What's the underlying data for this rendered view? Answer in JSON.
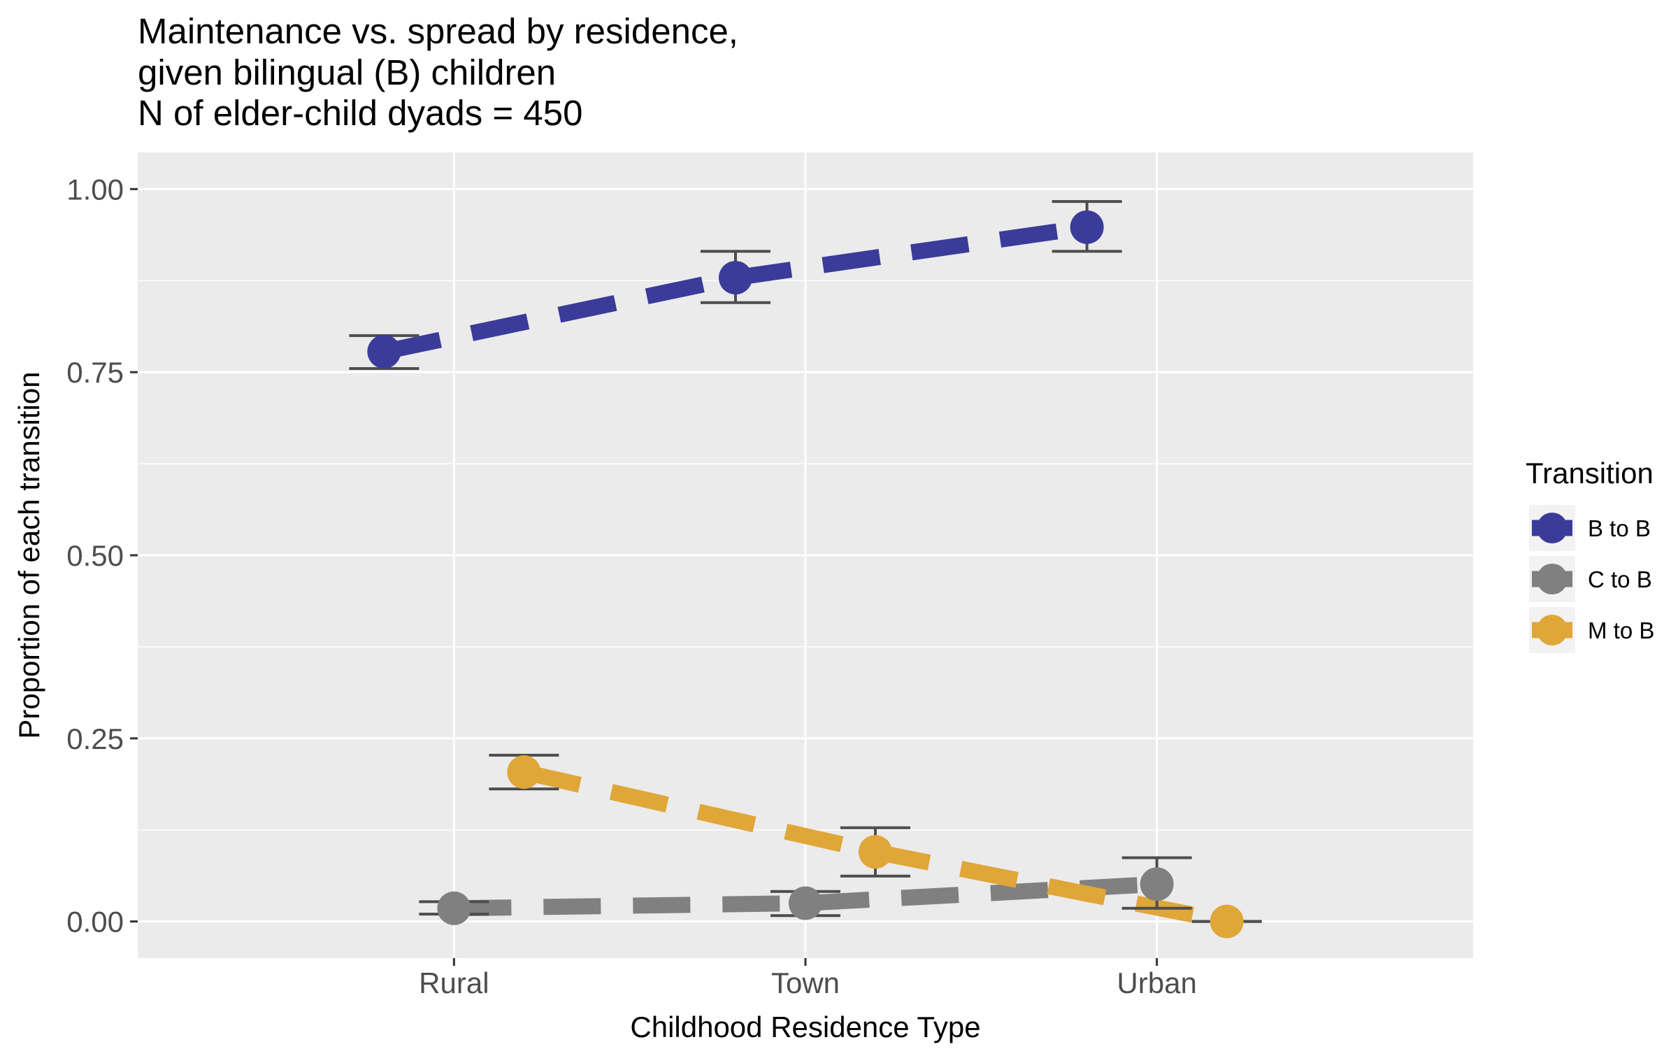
{
  "chart_data": {
    "type": "line",
    "title_lines": [
      "Maintenance vs. spread by residence,",
      "given bilingual (B) children",
      "N of elder-child dyads = 450"
    ],
    "xlabel": "Childhood Residence Type",
    "ylabel": "Proportion of each transition",
    "categories": [
      "Rural",
      "Town",
      "Urban"
    ],
    "ylim": [
      -0.05,
      1.05
    ],
    "y_ticks": [
      0.0,
      0.25,
      0.5,
      0.75,
      1.0
    ],
    "y_tick_labels": [
      "0.00",
      "0.25",
      "0.50",
      "0.75",
      "1.00"
    ],
    "grid": true,
    "line_style": "dashed",
    "legend": {
      "title": "Transition",
      "position": "right"
    },
    "series": [
      {
        "name": "B to B",
        "color": "#3b3b9a",
        "values": [
          0.778,
          0.879,
          0.948
        ],
        "error_low": [
          0.755,
          0.845,
          0.915
        ],
        "error_high": [
          0.8,
          0.915,
          0.983
        ]
      },
      {
        "name": "C to B",
        "color": "#808080",
        "values": [
          0.018,
          0.025,
          0.051
        ],
        "error_low": [
          0.01,
          0.008,
          0.018
        ],
        "error_high": [
          0.027,
          0.041,
          0.087
        ]
      },
      {
        "name": "M to B",
        "color": "#e0a638",
        "values": [
          0.204,
          0.095,
          0.0
        ],
        "error_low": [
          0.181,
          0.062,
          0.0
        ],
        "error_high": [
          0.227,
          0.128,
          0.0
        ]
      }
    ]
  }
}
